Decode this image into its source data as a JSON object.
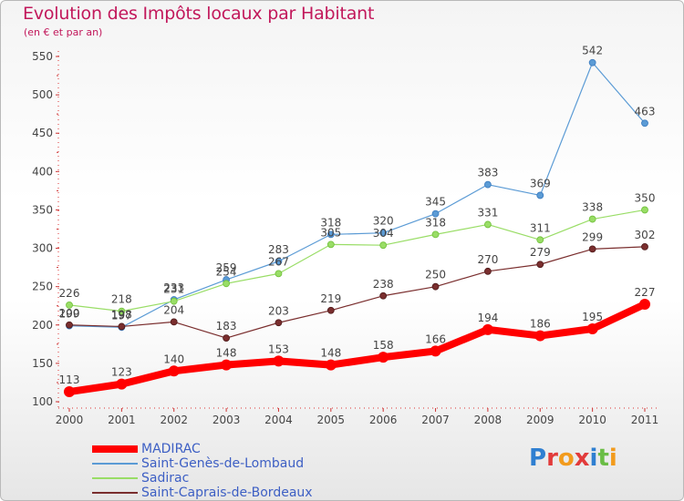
{
  "title": "Evolution des Impôts locaux par Habitant",
  "subtitle": "(en € et par an)",
  "logo_text": "Proxiti",
  "colors": {
    "title": "#c2185b",
    "axis_text": "#444444",
    "legend_text": "#3d5fc4"
  },
  "chart_data": {
    "type": "line",
    "title": "Evolution des Impôts locaux par Habitant",
    "subtitle": "(en € et par an)",
    "x": [
      "2000",
      "2001",
      "2002",
      "2003",
      "2004",
      "2005",
      "2006",
      "2007",
      "2008",
      "2009",
      "2010",
      "2011"
    ],
    "ylim": [
      100,
      550
    ],
    "yticks": [
      100,
      150,
      200,
      250,
      300,
      350,
      400,
      450,
      500,
      550
    ],
    "grid": false,
    "legend_position": "bottom-left",
    "series": [
      {
        "name": "MADIRAC",
        "color": "#ff0000",
        "values": [
          113,
          123,
          140,
          148,
          153,
          148,
          158,
          166,
          194,
          186,
          195,
          227
        ]
      },
      {
        "name": "Saint-Genès-de-Lombaud",
        "color": "#5b9bd5",
        "values": [
          199,
          197,
          233,
          259,
          283,
          318,
          320,
          345,
          383,
          369,
          542,
          463
        ]
      },
      {
        "name": "Sadirac",
        "color": "#99dd66",
        "values": [
          226,
          218,
          231,
          254,
          267,
          305,
          304,
          318,
          331,
          311,
          338,
          350
        ]
      },
      {
        "name": "Saint-Caprais-de-Bordeaux",
        "color": "#7a2e2e",
        "values": [
          200,
          198,
          204,
          183,
          203,
          219,
          238,
          250,
          270,
          279,
          299,
          302
        ]
      }
    ]
  }
}
